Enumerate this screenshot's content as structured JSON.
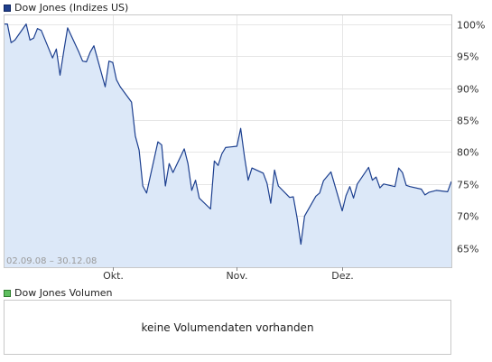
{
  "legend": {
    "price_label": "Dow Jones (Indizes US)",
    "volume_label": "Dow Jones Volumen"
  },
  "volume_message": "keine Volumendaten vorhanden",
  "colors": {
    "line": "#1c3f8f",
    "fill": "#dce8f8",
    "price_swatch": "#1f3f8c",
    "volume_swatch": "#5fbf5f",
    "grid": "#e6e6e6",
    "frame": "#c8c8c8"
  },
  "chart_data": {
    "type": "area",
    "date_range_label": "02.09.08 – 30.12.08",
    "yunit": "%",
    "ylim": [
      62,
      101.5
    ],
    "y_ticks": [
      65,
      70,
      75,
      80,
      85,
      90,
      95,
      100
    ],
    "y_tick_labels": [
      "65%",
      "70%",
      "75%",
      "80%",
      "85%",
      "90%",
      "95%",
      "100%"
    ],
    "x_tick_labels": [
      {
        "label": "Okt.",
        "date": "2008-10-01"
      },
      {
        "label": "Nov.",
        "date": "2008-11-03"
      },
      {
        "label": "Dez.",
        "date": "2008-12-01"
      }
    ],
    "grid": true,
    "series": [
      {
        "name": "Dow Jones (Indizes US)",
        "points": [
          [
            "2008-09-02",
            100.0
          ],
          [
            "2008-09-03",
            100.0
          ],
          [
            "2008-09-04",
            97.1
          ],
          [
            "2008-09-05",
            97.5
          ],
          [
            "2008-09-08",
            100.0
          ],
          [
            "2008-09-09",
            97.5
          ],
          [
            "2008-09-10",
            97.8
          ],
          [
            "2008-09-11",
            99.3
          ],
          [
            "2008-09-12",
            99.0
          ],
          [
            "2008-09-15",
            94.7
          ],
          [
            "2008-09-16",
            96.1
          ],
          [
            "2008-09-17",
            92.0
          ],
          [
            "2008-09-18",
            95.8
          ],
          [
            "2008-09-19",
            99.4
          ],
          [
            "2008-09-22",
            95.6
          ],
          [
            "2008-09-23",
            94.2
          ],
          [
            "2008-09-24",
            94.1
          ],
          [
            "2008-09-25",
            95.6
          ],
          [
            "2008-09-26",
            96.6
          ],
          [
            "2008-09-29",
            90.2
          ],
          [
            "2008-09-30",
            94.2
          ],
          [
            "2008-10-01",
            94.0
          ],
          [
            "2008-10-02",
            91.3
          ],
          [
            "2008-10-03",
            90.2
          ],
          [
            "2008-10-06",
            87.8
          ],
          [
            "2008-10-07",
            82.5
          ],
          [
            "2008-10-08",
            80.3
          ],
          [
            "2008-10-09",
            74.7
          ],
          [
            "2008-10-10",
            73.6
          ],
          [
            "2008-10-13",
            81.6
          ],
          [
            "2008-10-14",
            81.1
          ],
          [
            "2008-10-15",
            74.7
          ],
          [
            "2008-10-16",
            78.2
          ],
          [
            "2008-10-17",
            76.8
          ],
          [
            "2008-10-20",
            80.5
          ],
          [
            "2008-10-21",
            78.2
          ],
          [
            "2008-10-22",
            74.0
          ],
          [
            "2008-10-23",
            75.6
          ],
          [
            "2008-10-24",
            72.8
          ],
          [
            "2008-10-27",
            71.1
          ],
          [
            "2008-10-28",
            78.6
          ],
          [
            "2008-10-29",
            77.9
          ],
          [
            "2008-10-30",
            79.7
          ],
          [
            "2008-10-31",
            80.7
          ],
          [
            "2008-11-03",
            80.9
          ],
          [
            "2008-11-04",
            83.7
          ],
          [
            "2008-11-05",
            79.3
          ],
          [
            "2008-11-06",
            75.6
          ],
          [
            "2008-11-07",
            77.5
          ],
          [
            "2008-11-10",
            76.7
          ],
          [
            "2008-11-11",
            75.1
          ],
          [
            "2008-11-12",
            72.0
          ],
          [
            "2008-11-13",
            77.2
          ],
          [
            "2008-11-14",
            74.7
          ],
          [
            "2008-11-17",
            72.9
          ],
          [
            "2008-11-18",
            73.0
          ],
          [
            "2008-11-19",
            69.7
          ],
          [
            "2008-11-20",
            65.6
          ],
          [
            "2008-11-21",
            70.0
          ],
          [
            "2008-11-24",
            73.1
          ],
          [
            "2008-11-25",
            73.6
          ],
          [
            "2008-11-26",
            75.5
          ],
          [
            "2008-11-28",
            76.9
          ],
          [
            "2008-12-01",
            70.8
          ],
          [
            "2008-12-02",
            73.2
          ],
          [
            "2008-12-03",
            74.6
          ],
          [
            "2008-12-04",
            72.8
          ],
          [
            "2008-12-05",
            75.0
          ],
          [
            "2008-12-08",
            77.6
          ],
          [
            "2008-12-09",
            75.6
          ],
          [
            "2008-12-10",
            76.1
          ],
          [
            "2008-12-11",
            74.4
          ],
          [
            "2008-12-12",
            75.0
          ],
          [
            "2008-12-15",
            74.6
          ],
          [
            "2008-12-16",
            77.5
          ],
          [
            "2008-12-17",
            76.8
          ],
          [
            "2008-12-18",
            74.8
          ],
          [
            "2008-12-19",
            74.6
          ],
          [
            "2008-12-22",
            74.2
          ],
          [
            "2008-12-23",
            73.3
          ],
          [
            "2008-12-24",
            73.7
          ],
          [
            "2008-12-26",
            74.0
          ],
          [
            "2008-12-29",
            73.8
          ],
          [
            "2008-12-30",
            75.4
          ]
        ]
      }
    ]
  }
}
